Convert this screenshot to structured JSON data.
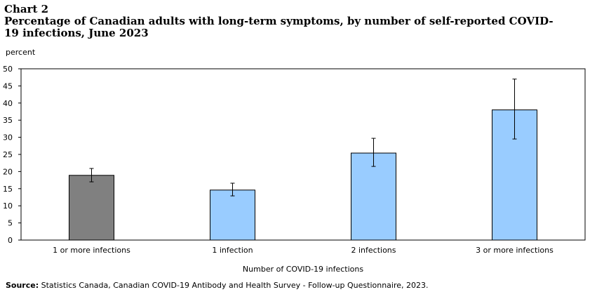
{
  "header": {
    "chart_label": "Chart 2",
    "title": "Percentage of Canadian adults with long-term symptoms, by number of self-reported COVID-19 infections, June 2023"
  },
  "footer": {
    "source_label": "Source:",
    "source_text": " Statistics Canada, Canadian COVID-19 Antibody and Health Survey - Follow-up Questionnaire, 2023."
  },
  "colors": {
    "highlight_bar": "#808080",
    "bar": "#99ccff",
    "bar_stroke": "#000000"
  },
  "chart_data": {
    "type": "bar",
    "title": "Percentage of Canadian adults with long-term symptoms, by number of self-reported COVID-19 infections, June 2023",
    "xlabel": "Number of COVID-19 infections",
    "ylabel": "percent",
    "ylim": [
      0,
      50
    ],
    "yticks": [
      0,
      5,
      10,
      15,
      20,
      25,
      30,
      35,
      40,
      45,
      50
    ],
    "grid": false,
    "categories": [
      "1 or more infections",
      "1 infection",
      "2 infections",
      "3 or more infections"
    ],
    "values": [
      18.9,
      14.6,
      25.4,
      38.0
    ],
    "error_low": [
      17.0,
      12.9,
      21.5,
      29.5
    ],
    "error_high": [
      20.9,
      16.6,
      29.7,
      47.0
    ],
    "bar_colors": [
      "#808080",
      "#99ccff",
      "#99ccff",
      "#99ccff"
    ]
  }
}
